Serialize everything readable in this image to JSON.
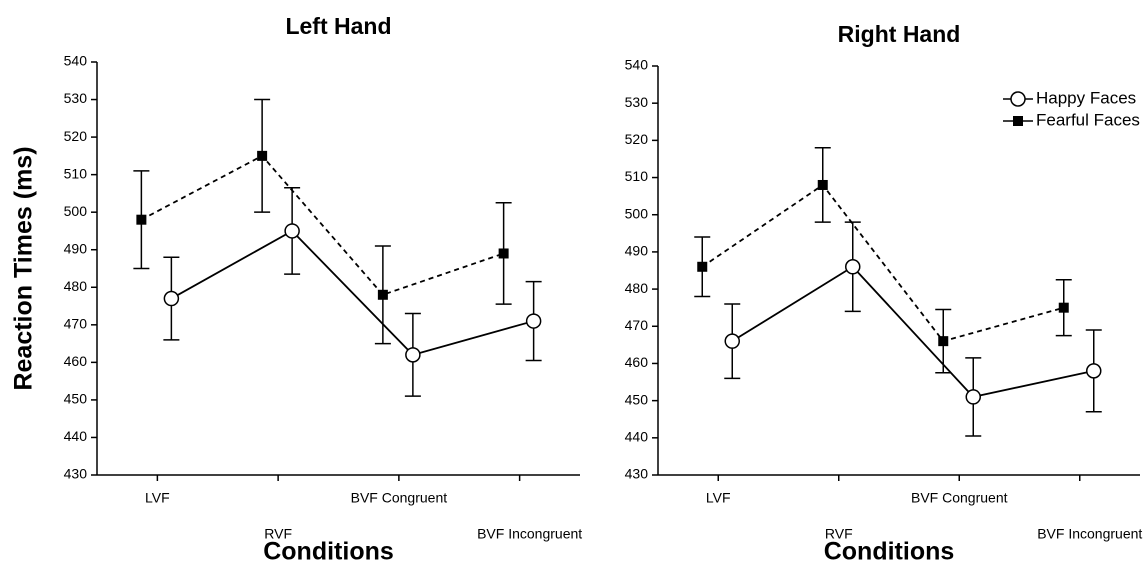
{
  "chart_data": [
    {
      "type": "line",
      "title": "Left Hand",
      "categories": [
        "LVF",
        "RVF",
        "BVF Congruent",
        "BVF Incongruent"
      ],
      "x_label": "Conditions",
      "y_label": "Reaction Times (ms)",
      "ylim": [
        430,
        540
      ],
      "yticks": [
        430,
        440,
        450,
        460,
        470,
        480,
        490,
        500,
        510,
        520,
        530,
        540
      ],
      "series": [
        {
          "marker": "circle",
          "dashed": false,
          "color": "#000000",
          "values": [
            477,
            495,
            462,
            471
          ],
          "errors": [
            11,
            11.5,
            11,
            10.5
          ]
        },
        {
          "marker": "square",
          "dashed": true,
          "color": "#000000",
          "values": [
            498,
            515,
            478,
            489
          ],
          "errors": [
            13,
            15,
            13,
            13.5
          ]
        }
      ]
    },
    {
      "type": "line",
      "title": "Right Hand",
      "categories": [
        "LVF",
        "RVF",
        "BVF Congruent",
        "BVF Incongruent"
      ],
      "x_label": "Conditions",
      "legend": "upper right",
      "ylim": [
        430,
        540
      ],
      "yticks": [
        430,
        440,
        450,
        460,
        470,
        480,
        490,
        500,
        510,
        520,
        530,
        540
      ],
      "series": [
        {
          "name": "Happy Faces",
          "marker": "circle",
          "dashed": false,
          "color": "#000000",
          "values": [
            466,
            486,
            451,
            458
          ],
          "errors": [
            10,
            12,
            10.5,
            11
          ]
        },
        {
          "name": "Fearful Faces",
          "marker": "square",
          "dashed": true,
          "color": "#000000",
          "values": [
            486,
            508,
            466,
            475
          ],
          "errors": [
            8,
            10,
            8.5,
            7.5
          ]
        }
      ]
    }
  ]
}
